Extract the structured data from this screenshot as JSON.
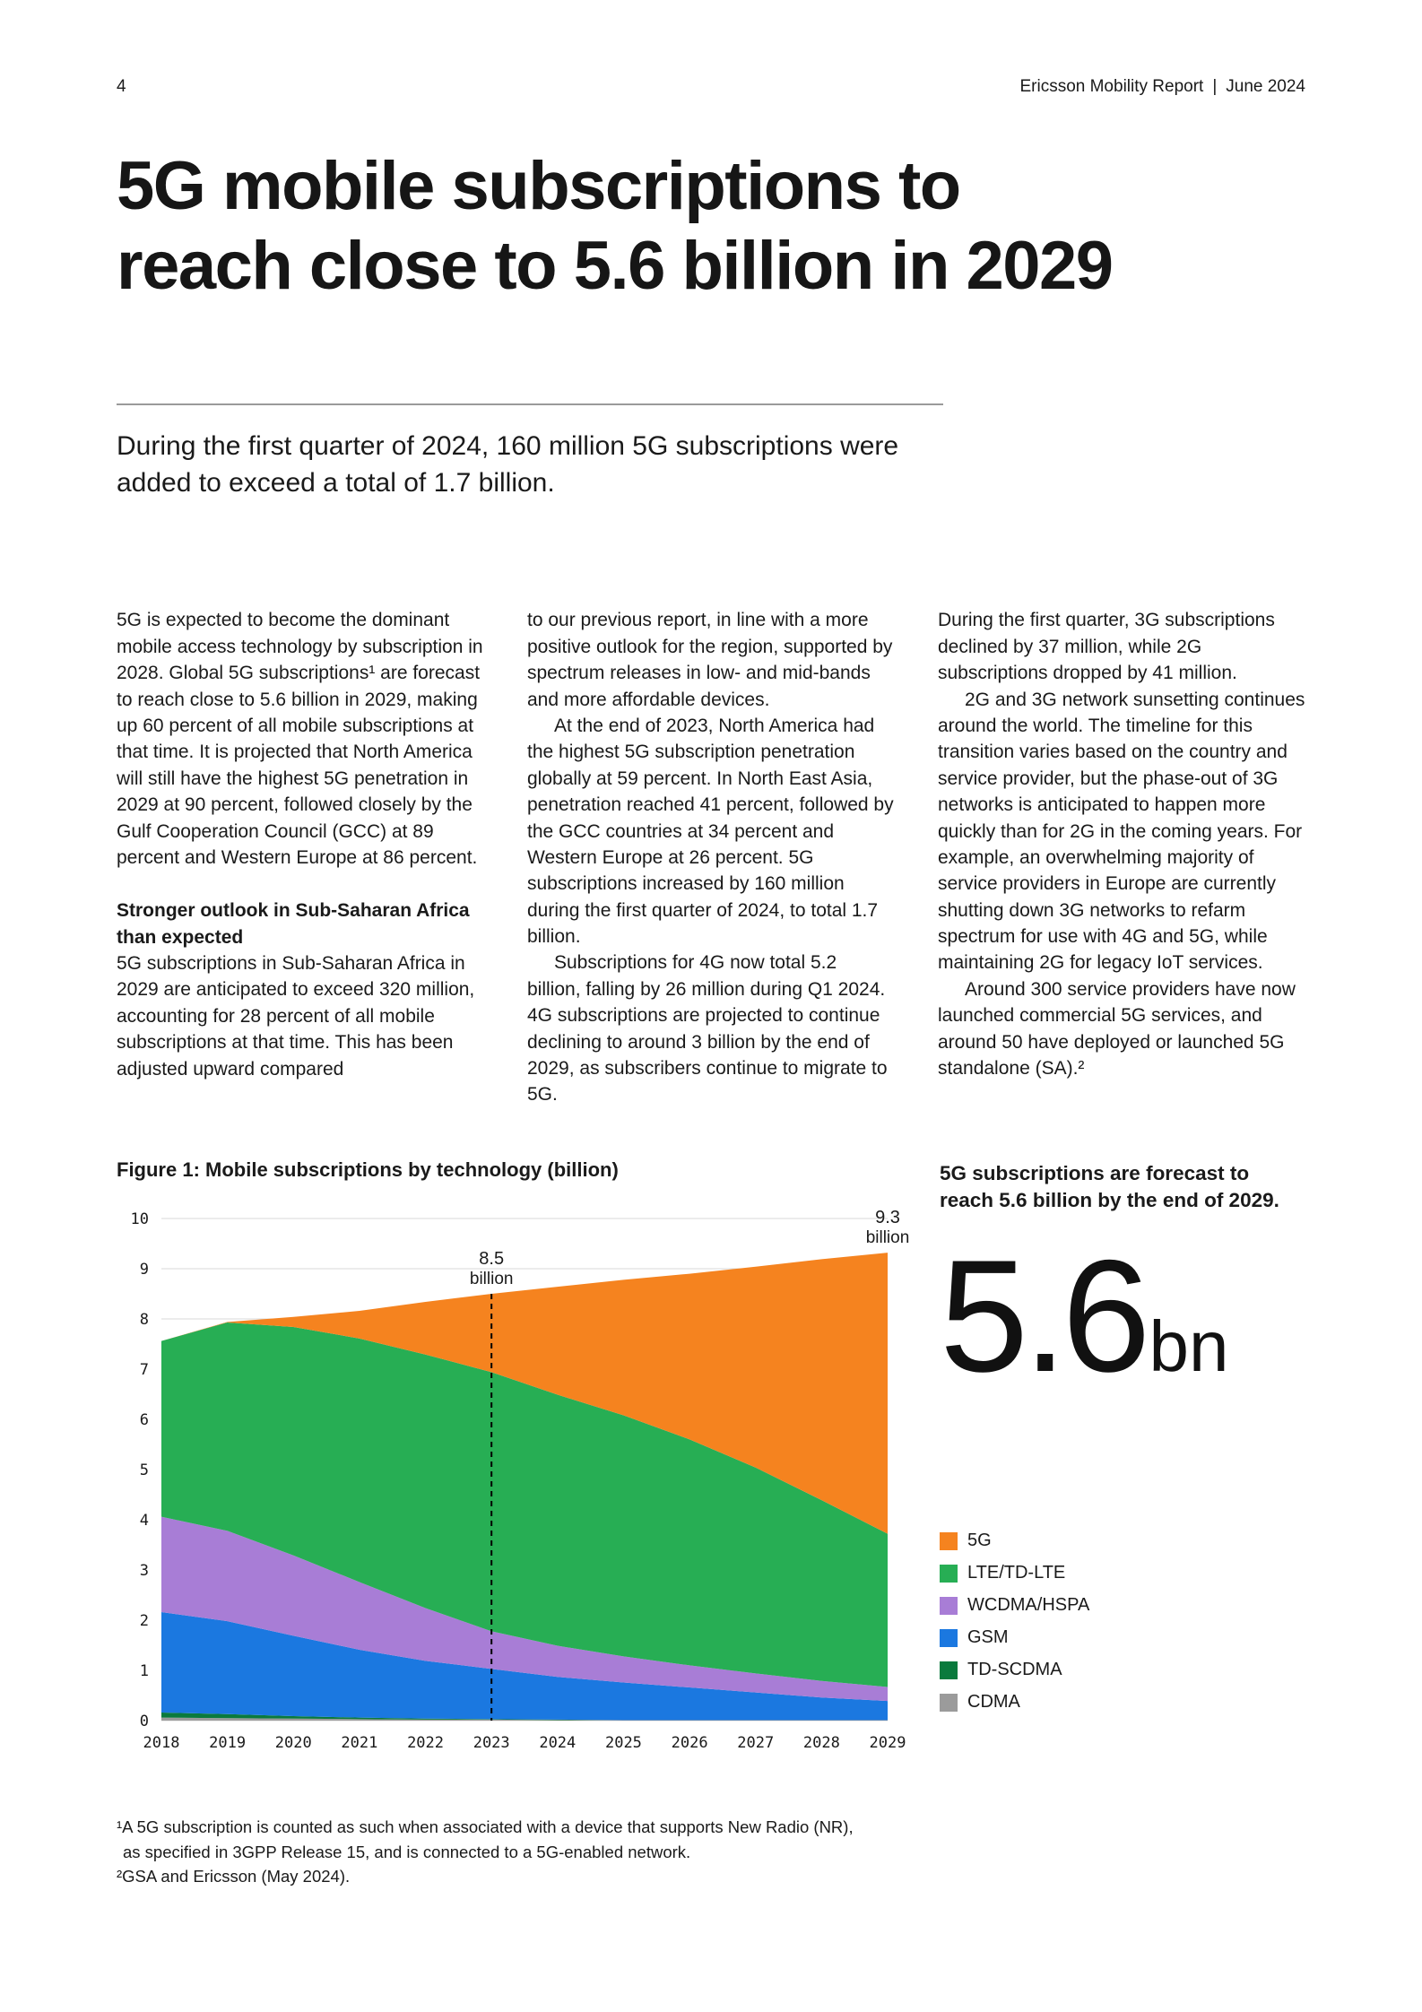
{
  "header": {
    "page_number": "4",
    "report_title": "Ericsson Mobility Report",
    "separator": "|",
    "date": "June 2024"
  },
  "title": {
    "line1": "5G mobile subscriptions to",
    "line2": "reach close to 5.6 billion in 2029"
  },
  "lede": "During the first quarter of 2024, 160 million 5G subscriptions were added to exceed a total of 1.7 billion.",
  "body": {
    "col1": {
      "p1": "5G is expected to become the dominant mobile access technology by subscription in 2028. Global 5G subscriptions¹ are forecast to reach close to 5.6 billion in 2029, making up 60 percent of all mobile subscriptions at that time. It is projected that North America will still have the highest 5G penetration in 2029 at 90 percent, followed closely by the Gulf Cooperation Council (GCC) at 89 percent and Western Europe at 86 percent.",
      "h1": "Stronger outlook in Sub-Saharan Africa than expected",
      "p2": "5G subscriptions in Sub-Saharan Africa in 2029 are anticipated to exceed 320 million, accounting for 28 percent of all mobile subscriptions at that time. This has been adjusted upward compared"
    },
    "col2": {
      "p1": "to our previous report, in line with a more positive outlook for the region, supported by spectrum releases in low- and mid-bands and more affordable devices.",
      "p2": "At the end of 2023, North America had the highest 5G subscription penetration globally at 59 percent. In North East Asia, penetration reached 41 percent, followed by the GCC countries at 34 percent and Western Europe at 26 percent. 5G subscriptions increased by 160 million during the first quarter of 2024, to total 1.7 billion.",
      "p3": "Subscriptions for 4G now total 5.2 billion, falling by 26 million during Q1 2024. 4G subscriptions are projected to continue declining to around 3 billion by the end of 2029, as subscribers continue to migrate to 5G."
    },
    "col3": {
      "p1": "During the first quarter, 3G subscriptions declined by 37 million, while 2G subscriptions dropped by 41 million.",
      "p2": "2G and 3G network sunsetting continues around the world. The timeline for this transition varies based on the country and service provider, but the phase-out of 3G networks is anticipated to happen more quickly than for 2G in the coming years. For example, an overwhelming majority of service providers in Europe are currently shutting down 3G networks to refarm spectrum for use with 4G and 5G, while maintaining 2G for legacy IoT services.",
      "p3": "Around 300 service providers have now launched commercial 5G services, and around 50 have deployed or launched 5G standalone (SA).²"
    }
  },
  "figure": {
    "title": "Figure 1: Mobile subscriptions by technology (billion)"
  },
  "sidebar": {
    "callout": "5G subscriptions are forecast to reach 5.6 billion by the end of 2029.",
    "big_number": "5.6",
    "big_number_unit": "bn"
  },
  "chart_data": {
    "type": "area",
    "stacked": true,
    "title": "Figure 1: Mobile subscriptions by technology (billion)",
    "x": [
      2018,
      2019,
      2020,
      2021,
      2022,
      2023,
      2024,
      2025,
      2026,
      2027,
      2028,
      2029
    ],
    "xlabel": "",
    "ylabel": "",
    "ylim": [
      0,
      10
    ],
    "yticks": [
      0,
      1,
      2,
      3,
      4,
      5,
      6,
      7,
      8,
      9,
      10
    ],
    "grid": true,
    "legend_position": "right",
    "series": [
      {
        "name": "CDMA",
        "color": "#9b9b9b",
        "values": [
          0.06,
          0.05,
          0.04,
          0.03,
          0.02,
          0.02,
          0.01,
          0.01,
          0.01,
          0.01,
          0.01,
          0.01
        ]
      },
      {
        "name": "TD-SCDMA",
        "color": "#0a7a3d",
        "values": [
          0.1,
          0.08,
          0.05,
          0.03,
          0.02,
          0.01,
          0.01,
          0.0,
          0.0,
          0.0,
          0.0,
          0.0
        ]
      },
      {
        "name": "GSM",
        "color": "#1b78e0",
        "values": [
          2.0,
          1.85,
          1.6,
          1.35,
          1.15,
          1.0,
          0.85,
          0.75,
          0.65,
          0.55,
          0.45,
          0.38
        ]
      },
      {
        "name": "WCDMA/HSPA",
        "color": "#a87dd6",
        "values": [
          1.9,
          1.8,
          1.6,
          1.35,
          1.05,
          0.75,
          0.62,
          0.52,
          0.44,
          0.38,
          0.33,
          0.28
        ]
      },
      {
        "name": "LTE/TD-LTE",
        "color": "#27ae54",
        "values": [
          3.5,
          4.15,
          4.55,
          4.85,
          5.05,
          5.16,
          5.0,
          4.8,
          4.5,
          4.1,
          3.6,
          3.05
        ]
      },
      {
        "name": "5G",
        "color": "#f5831f",
        "values": [
          0.0,
          0.01,
          0.2,
          0.55,
          1.05,
          1.56,
          2.15,
          2.7,
          3.3,
          4.0,
          4.8,
          5.6
        ]
      }
    ],
    "legend": [
      {
        "label": "5G",
        "color": "#f5831f"
      },
      {
        "label": "LTE/TD-LTE",
        "color": "#27ae54"
      },
      {
        "label": "WCDMA/HSPA",
        "color": "#a87dd6"
      },
      {
        "label": "GSM",
        "color": "#1b78e0"
      },
      {
        "label": "TD-SCDMA",
        "color": "#0a7a3d"
      },
      {
        "label": "CDMA",
        "color": "#9b9b9b"
      }
    ],
    "annotations": [
      {
        "x": 2023,
        "value": "8.5",
        "unit": "billion",
        "dashed_line": true
      },
      {
        "x": 2029,
        "value": "9.3",
        "unit": "billion",
        "dashed_line": false
      }
    ]
  },
  "footnotes": {
    "line1": "¹A 5G subscription is counted as such when associated with a device that supports New Radio (NR),",
    "line2": "as specified in 3GPP Release 15, and is connected to a 5G-enabled network.",
    "line3": "²GSA and Ericsson (May 2024)."
  }
}
